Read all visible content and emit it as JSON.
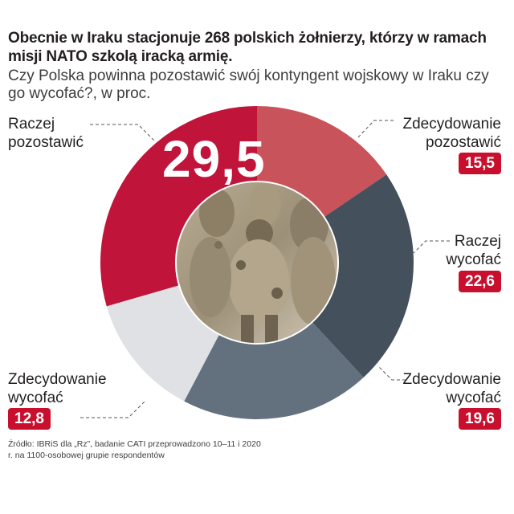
{
  "title": "Obecnie w Iraku stacjonuje 268 polskich żołnierzy, którzy w ramach misji NATO szkolą iracką armię.",
  "subtitle": "Czy Polska powinna pozostawić swój kontyngent wojskowy w Iraku czy go wycofać?, w proc.",
  "source": "Źródło: IBRiS dla „Rz”, badanie CATI przeprowadzono 10–11 i 2020 r. na 1100-osobowej grupie respondentów",
  "center_image": "soldiers-photo",
  "chart_data": {
    "type": "pie",
    "donut": true,
    "categories": [
      "Zdecydowanie pozostawić",
      "Raczej wycofać",
      "Zdecydowanie wycofać",
      "Zdecydowanie wycofać",
      "Raczej pozostawić"
    ],
    "values": [
      15.5,
      22.6,
      19.6,
      12.8,
      29.5
    ],
    "value_labels": [
      "15,5",
      "22,6",
      "19,6",
      "12,8",
      "29,5"
    ],
    "colors": [
      "#c9535b",
      "#44505c",
      "#63717f",
      "#dfe1e4",
      "#c0143b"
    ],
    "start_angle_deg": 0,
    "direction": "clockwise",
    "slices": [
      {
        "label_line1": "Zdecydowanie",
        "label_line2": "pozostawić",
        "value": "15,5"
      },
      {
        "label_line1": "Raczej",
        "label_line2": "wycofać",
        "value": "22,6"
      },
      {
        "label_line1": "Zdecydowanie",
        "label_line2": "wycofać",
        "value": "19,6"
      },
      {
        "label_line1": "Zdecydowanie",
        "label_line2": "wycofać",
        "value": "12,8"
      },
      {
        "label_line1": "Raczej",
        "label_line2": "pozostawić",
        "value": "29,5"
      }
    ]
  }
}
